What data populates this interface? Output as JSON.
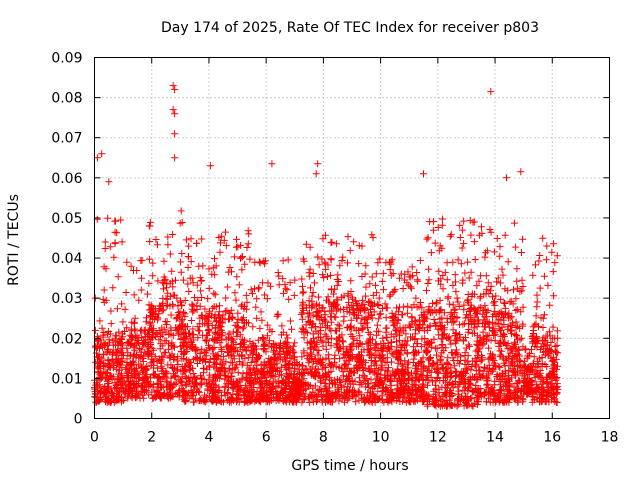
{
  "chart_data": {
    "type": "scatter",
    "title": "Day 174 of 2025, Rate Of TEC Index for receiver p803",
    "xlabel": "GPS time / hours",
    "ylabel": "ROTI / TECUs",
    "xlim": [
      0,
      18
    ],
    "ylim": [
      0,
      0.09
    ],
    "xticks": [
      "0",
      "2",
      "4",
      "6",
      "8",
      "10",
      "12",
      "14",
      "16",
      "18"
    ],
    "yticks": [
      "0",
      "0.01",
      "0.02",
      "0.03",
      "0.04",
      "0.05",
      "0.06",
      "0.07",
      "0.08",
      "0.09"
    ],
    "grid": true,
    "marker": "+",
    "color": "#ff0000",
    "data_extent_hours": [
      0,
      16.2
    ],
    "notable_points": [
      {
        "x": 0.1,
        "y": 0.065
      },
      {
        "x": 0.25,
        "y": 0.066
      },
      {
        "x": 0.5,
        "y": 0.059
      },
      {
        "x": 2.75,
        "y": 0.083
      },
      {
        "x": 2.8,
        "y": 0.082
      },
      {
        "x": 2.75,
        "y": 0.077
      },
      {
        "x": 2.8,
        "y": 0.076
      },
      {
        "x": 2.8,
        "y": 0.071
      },
      {
        "x": 2.8,
        "y": 0.065
      },
      {
        "x": 4.05,
        "y": 0.063
      },
      {
        "x": 6.2,
        "y": 0.0635
      },
      {
        "x": 7.8,
        "y": 0.0635
      },
      {
        "x": 7.75,
        "y": 0.061
      },
      {
        "x": 11.5,
        "y": 0.061
      },
      {
        "x": 13.85,
        "y": 0.0815
      },
      {
        "x": 14.9,
        "y": 0.0615
      },
      {
        "x": 14.4,
        "y": 0.06
      }
    ],
    "density_profile": [
      {
        "x0": 0.0,
        "x1": 1.1,
        "base": [
          0.004,
          0.02
        ],
        "tail": 0.05
      },
      {
        "x0": 1.1,
        "x1": 1.9,
        "base": [
          0.005,
          0.022
        ],
        "tail": 0.04
      },
      {
        "x0": 1.9,
        "x1": 3.1,
        "base": [
          0.005,
          0.028
        ],
        "tail": 0.052
      },
      {
        "x0": 3.1,
        "x1": 5.4,
        "base": [
          0.004,
          0.025
        ],
        "tail": 0.048
      },
      {
        "x0": 5.4,
        "x1": 7.0,
        "base": [
          0.004,
          0.018
        ],
        "tail": 0.04
      },
      {
        "x0": 7.0,
        "x1": 7.2,
        "base": [
          0.004,
          0.01
        ],
        "tail": 0.015
      },
      {
        "x0": 7.2,
        "x1": 9.8,
        "base": [
          0.004,
          0.028
        ],
        "tail": 0.046
      },
      {
        "x0": 9.8,
        "x1": 11.6,
        "base": [
          0.004,
          0.025
        ],
        "tail": 0.04
      },
      {
        "x0": 11.6,
        "x1": 13.4,
        "base": [
          0.003,
          0.027
        ],
        "tail": 0.05
      },
      {
        "x0": 13.4,
        "x1": 15.0,
        "base": [
          0.004,
          0.026
        ],
        "tail": 0.05
      },
      {
        "x0": 15.0,
        "x1": 15.3,
        "base": [
          0.006,
          0.012
        ],
        "tail": 0.018
      },
      {
        "x0": 15.3,
        "x1": 16.2,
        "base": [
          0.004,
          0.02
        ],
        "tail": 0.045
      }
    ]
  }
}
